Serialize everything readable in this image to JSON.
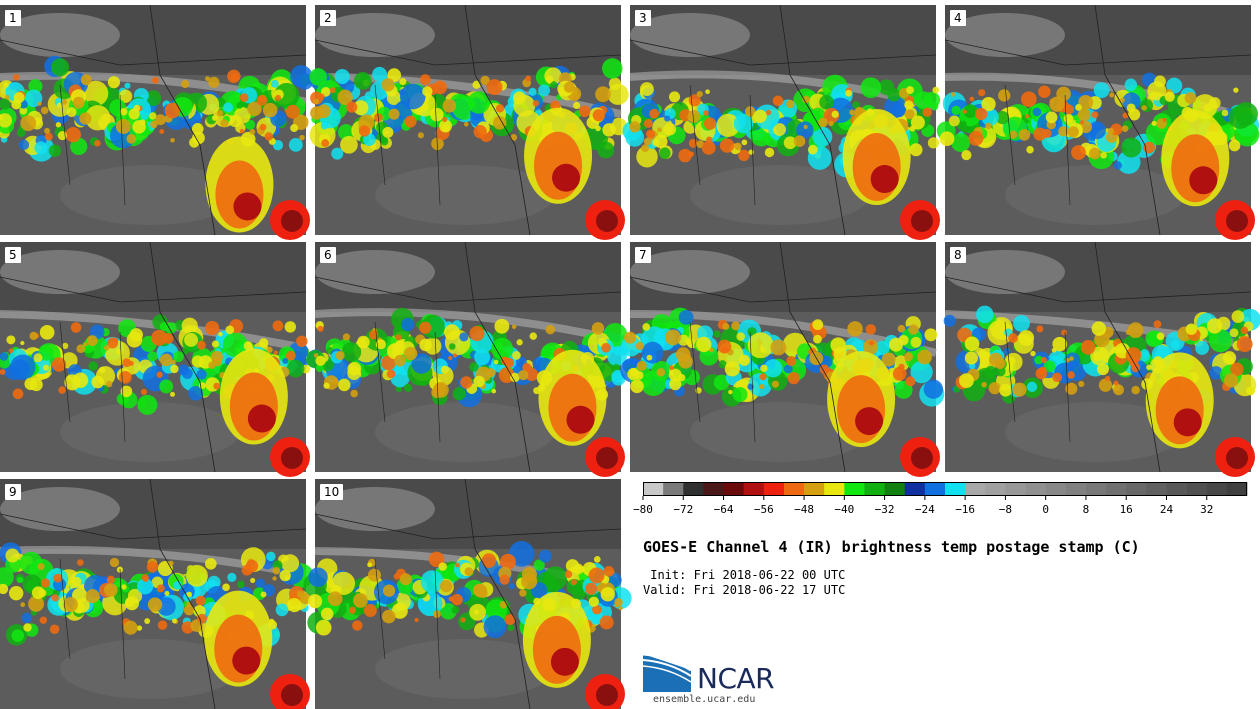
{
  "figure": {
    "title": "GOES-E Channel 4 (IR) brightness temp postage stamp (C)",
    "init_label": " Init: Fri 2018-06-22 00 UTC",
    "valid_label": "Valid: Fri 2018-06-22 17 UTC"
  },
  "panels": [
    {
      "label": "1"
    },
    {
      "label": "2"
    },
    {
      "label": "3"
    },
    {
      "label": "4"
    },
    {
      "label": "5"
    },
    {
      "label": "6"
    },
    {
      "label": "7"
    },
    {
      "label": "8"
    },
    {
      "label": "9"
    },
    {
      "label": "10"
    }
  ],
  "logo": {
    "name": "NCAR",
    "url": "ensemble.ucar.edu"
  },
  "chart_data": {
    "type": "heatmap",
    "title": "GOES-E Channel 4 (IR) brightness temp postage stamp (C)",
    "colorbar": {
      "tick_labels": [
        "−80",
        "−72",
        "−64",
        "−56",
        "−48",
        "−40",
        "−32",
        "−24",
        "−16",
        "−8",
        "0",
        "8",
        "16",
        "24",
        "32"
      ],
      "ticks": [
        -80,
        -72,
        -64,
        -56,
        -48,
        -40,
        -32,
        -24,
        -16,
        -8,
        0,
        8,
        16,
        24,
        32
      ],
      "range": [
        -80,
        40
      ],
      "bin_width": 4,
      "colors": [
        "#c8c8c8",
        "#7a7a7a",
        "#303030",
        "#4a1818",
        "#6a0a0a",
        "#b01010",
        "#ee2010",
        "#ee6a10",
        "#d4a010",
        "#e8e810",
        "#10e810",
        "#10b010",
        "#108010",
        "#1030a0",
        "#1070e0",
        "#10e0f0",
        "#a8a8a8",
        "#a0a0a0",
        "#989898",
        "#909090",
        "#888888",
        "#808080",
        "#787878",
        "#707070",
        "#686868",
        "#606060",
        "#585858",
        "#505050",
        "#484848",
        "#404040"
      ]
    },
    "members": 10
  }
}
